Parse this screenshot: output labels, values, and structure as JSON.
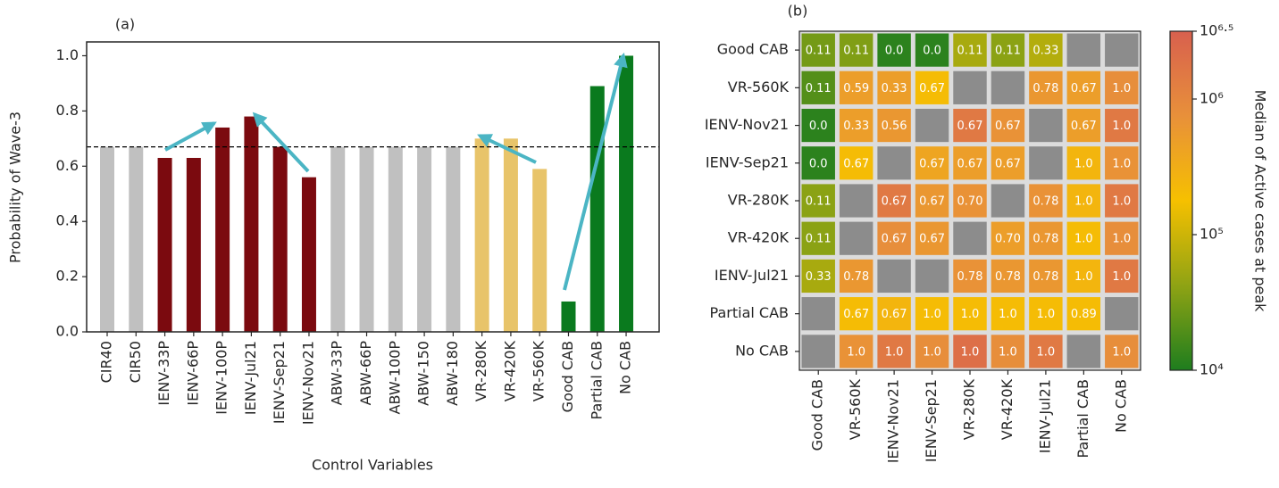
{
  "chart_data": [
    {
      "type": "bar",
      "title": "(a)",
      "xlabel": "Control Variables",
      "ylabel": "Probability of Wave-3",
      "categories": [
        "CIR40",
        "CIR50",
        "IENV-33P",
        "IENV-66P",
        "IENV-100P",
        "IENV-Jul21",
        "IENV-Sep21",
        "IENV-Nov21",
        "ABW-33P",
        "ABW-66P",
        "ABW-100P",
        "ABW-150",
        "ABW-180",
        "VR-280K",
        "VR-420K",
        "VR-560K",
        "Good CAB",
        "Partial CAB",
        "No CAB"
      ],
      "values": [
        0.67,
        0.67,
        0.63,
        0.63,
        0.74,
        0.78,
        0.67,
        0.56,
        0.67,
        0.67,
        0.67,
        0.67,
        0.67,
        0.7,
        0.7,
        0.59,
        0.11,
        0.89,
        1.0
      ],
      "colors": [
        "#c0c0c0",
        "#c0c0c0",
        "#7b0a0f",
        "#7b0a0f",
        "#7b0a0f",
        "#7b0a0f",
        "#7b0a0f",
        "#7b0a0f",
        "#c0c0c0",
        "#c0c0c0",
        "#c0c0c0",
        "#c0c0c0",
        "#c0c0c0",
        "#e8c46a",
        "#e8c46a",
        "#e8c46a",
        "#0a7a1e",
        "#0a7a1e",
        "#0a7a1e"
      ],
      "reference_line": 0.67,
      "ylim": [
        0,
        1.05
      ],
      "yticks": [
        {
          "value": 0,
          "label": "0.0"
        },
        0.2,
        0.4,
        0.6,
        0.8,
        {
          "value": 1,
          "label": "1.0"
        }
      ]
    },
    {
      "type": "heatmap",
      "title": "(b)",
      "x_categories": [
        "Good CAB",
        "VR-560K",
        "IENV-Nov21",
        "IENV-Sep21",
        "VR-280K",
        "VR-420K",
        "IENV-Jul21",
        "Partial CAB",
        "No CAB"
      ],
      "y_categories": [
        "Good CAB",
        "VR-560K",
        "IENV-Nov21",
        "IENV-Sep21",
        "VR-280K",
        "VR-420K",
        "IENV-Jul21",
        "Partial CAB",
        "No CAB"
      ],
      "values": [
        [
          0.11,
          0.11,
          0,
          0,
          0.11,
          0.11,
          0.33,
          null,
          null
        ],
        [
          0.11,
          0.59,
          0.33,
          0.67,
          null,
          null,
          0.78,
          0.67,
          1
        ],
        [
          0,
          0.33,
          0.56,
          null,
          0.67,
          0.67,
          null,
          0.67,
          1
        ],
        [
          0,
          0.67,
          null,
          0.67,
          0.67,
          0.67,
          null,
          1,
          1
        ],
        [
          0.11,
          null,
          0.67,
          0.67,
          0.7,
          null,
          0.78,
          1,
          1
        ],
        [
          0.11,
          null,
          0.67,
          0.67,
          null,
          0.7,
          0.78,
          1,
          1
        ],
        [
          0.33,
          0.78,
          null,
          null,
          0.78,
          0.78,
          0.78,
          1,
          1
        ],
        [
          null,
          0.67,
          0.67,
          1,
          1,
          1,
          1,
          0.89,
          null
        ],
        [
          null,
          1,
          1,
          1,
          1,
          1,
          1,
          null,
          1
        ]
      ],
      "value_labels": [
        [
          "0.11",
          "0.11",
          "0.0",
          "0.0",
          "0.11",
          "0.11",
          "0.33",
          null,
          null
        ],
        [
          "0.11",
          "0.59",
          "0.33",
          "0.67",
          null,
          null,
          "0.78",
          "0.67",
          "1.0"
        ],
        [
          "0.0",
          "0.33",
          "0.56",
          null,
          "0.67",
          "0.67",
          null,
          "0.67",
          "1.0"
        ],
        [
          "0.0",
          "0.67",
          null,
          "0.67",
          "0.67",
          "0.67",
          null,
          "1.0",
          "1.0"
        ],
        [
          "0.11",
          null,
          "0.67",
          "0.67",
          "0.70",
          null,
          "0.78",
          "1.0",
          "1.0"
        ],
        [
          "0.11",
          null,
          "0.67",
          "0.67",
          null,
          "0.70",
          "0.78",
          "1.0",
          "1.0"
        ],
        [
          "0.33",
          "0.78",
          null,
          null,
          "0.78",
          "0.78",
          "0.78",
          "1.0",
          "1.0"
        ],
        [
          null,
          "0.67",
          "0.67",
          "1.0",
          "1.0",
          "1.0",
          "1.0",
          "0.89",
          null
        ],
        [
          null,
          "1.0",
          "1.0",
          "1.0",
          "1.0",
          "1.0",
          "1.0",
          null,
          "1.0"
        ]
      ],
      "color_values": [
        [
          30000,
          35000,
          12000,
          12000,
          60000,
          40000,
          70000,
          null,
          null
        ],
        [
          20000,
          500000,
          500000,
          200000,
          null,
          null,
          600000,
          500000,
          800000
        ],
        [
          12000,
          500000,
          600000,
          null,
          1500000,
          700000,
          null,
          500000,
          1500000
        ],
        [
          12000,
          200000,
          null,
          400000,
          500000,
          500000,
          null,
          250000,
          700000
        ],
        [
          40000,
          null,
          1500000,
          600000,
          700000,
          null,
          700000,
          250000,
          1500000
        ],
        [
          40000,
          null,
          800000,
          600000,
          null,
          500000,
          600000,
          200000,
          800000
        ],
        [
          60000,
          600000,
          null,
          null,
          700000,
          600000,
          600000,
          250000,
          1500000
        ],
        [
          null,
          200000,
          250000,
          200000,
          200000,
          200000,
          200000,
          200000,
          null
        ],
        [
          null,
          700000,
          1500000,
          800000,
          2000000,
          800000,
          1500000,
          null,
          800000
        ]
      ],
      "colorbar_label": "Median of Active cases at peak",
      "clim": [
        10000,
        3162278
      ],
      "color_log": true,
      "colormap": [
        "#1e7d1e",
        "#8fa314",
        "#f6c000",
        "#e8903a",
        "#d8604e"
      ],
      "null_color": "#8c8c8c",
      "cticks": [
        {
          "value": 10000,
          "label": "10⁴"
        },
        {
          "value": 100000,
          "label": "10⁵"
        },
        {
          "value": 1000000,
          "label": "10⁶"
        },
        {
          "value": 3162278,
          "label": "10⁶·⁵"
        }
      ]
    }
  ]
}
